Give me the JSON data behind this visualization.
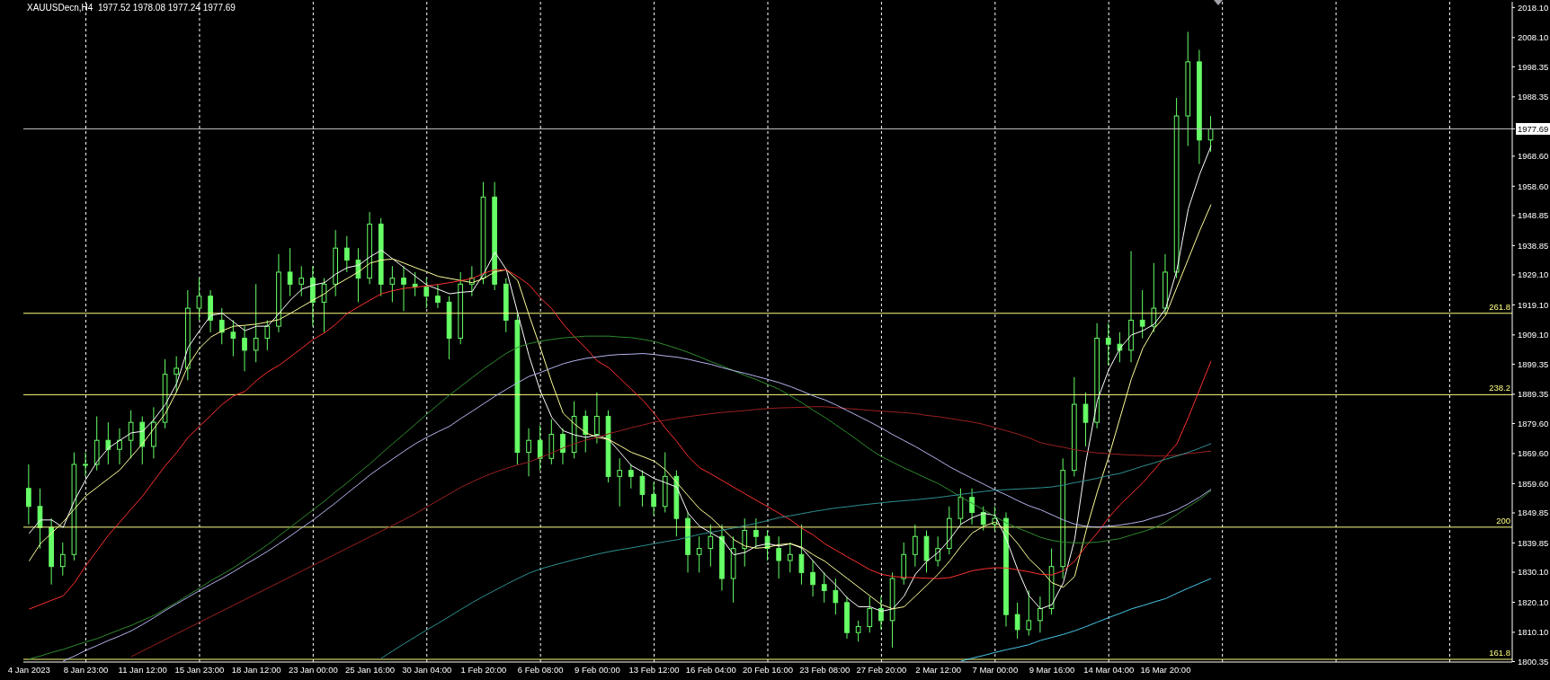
{
  "chart_data": {
    "type": "candlestick",
    "title": "XAUUSDecn,H4  1977.52 1978.08 1977.24 1977.69",
    "color": "#66ff66",
    "categories": [
      "4 Jan 2023",
      null,
      null,
      null,
      null,
      "8 Jan 23:00",
      null,
      null,
      null,
      null,
      "11 Jan 12:00",
      null,
      null,
      null,
      null,
      "15 Jan 23:00",
      null,
      null,
      null,
      null,
      "18 Jan 12:00",
      null,
      null,
      null,
      null,
      "23 Jan 00:00",
      null,
      null,
      null,
      null,
      "25 Jan 16:00",
      null,
      null,
      null,
      null,
      "30 Jan 04:00",
      null,
      null,
      null,
      null,
      "1 Feb 20:00",
      null,
      null,
      null,
      null,
      "6 Feb 08:00",
      null,
      null,
      null,
      null,
      "9 Feb 00:00",
      null,
      null,
      null,
      null,
      "13 Feb 12:00",
      null,
      null,
      null,
      null,
      "16 Feb 04:00",
      null,
      null,
      null,
      null,
      "20 Feb 16:00",
      null,
      null,
      null,
      null,
      "23 Feb 08:00",
      null,
      null,
      null,
      null,
      "27 Feb 20:00",
      null,
      null,
      null,
      null,
      "2 Mar 12:00",
      null,
      null,
      null,
      null,
      "7 Mar 00:00",
      null,
      null,
      null,
      null,
      "9 Mar 16:00",
      null,
      null,
      null,
      null,
      "14 Mar 04:00",
      null,
      null,
      null,
      null,
      "16 Mar 20:00",
      null,
      null,
      null,
      null,
      null,
      null,
      null,
      null,
      null,
      null,
      null,
      null,
      null,
      null,
      null,
      null,
      null,
      null,
      null,
      null,
      null,
      null,
      null,
      null,
      null,
      null,
      null,
      null,
      null,
      null
    ],
    "ohlc": [
      [
        1858,
        1866,
        1846,
        1852
      ],
      [
        1852,
        1858,
        1838,
        1845
      ],
      [
        1845,
        1848,
        1826,
        1832
      ],
      [
        1832,
        1840,
        1829,
        1836
      ],
      [
        1836,
        1870,
        1834,
        1866
      ],
      [
        1866,
        1870,
        1862,
        1866
      ],
      [
        1866,
        1882,
        1864,
        1874
      ],
      [
        1874,
        1880,
        1866,
        1871
      ],
      [
        1871,
        1878,
        1866,
        1874
      ],
      [
        1874,
        1884,
        1868,
        1880
      ],
      [
        1880,
        1882,
        1866,
        1872
      ],
      [
        1872,
        1885,
        1868,
        1880
      ],
      [
        1880,
        1901,
        1878,
        1896
      ],
      [
        1896,
        1902,
        1890,
        1898
      ],
      [
        1898,
        1924,
        1894,
        1918
      ],
      [
        1918,
        1928,
        1914,
        1922
      ],
      [
        1922,
        1924,
        1910,
        1914
      ],
      [
        1914,
        1918,
        1906,
        1910
      ],
      [
        1910,
        1914,
        1902,
        1908
      ],
      [
        1908,
        1912,
        1897,
        1904
      ],
      [
        1904,
        1926,
        1900,
        1908
      ],
      [
        1908,
        1914,
        1904,
        1912
      ],
      [
        1912,
        1936,
        1910,
        1930
      ],
      [
        1930,
        1938,
        1922,
        1926
      ],
      [
        1926,
        1932,
        1922,
        1928
      ],
      [
        1928,
        1932,
        1912,
        1920
      ],
      [
        1920,
        1928,
        1910,
        1926
      ],
      [
        1926,
        1944,
        1922,
        1938
      ],
      [
        1938,
        1942,
        1930,
        1934
      ],
      [
        1934,
        1938,
        1920,
        1928
      ],
      [
        1928,
        1950,
        1926,
        1946
      ],
      [
        1946,
        1948,
        1922,
        1926
      ],
      [
        1926,
        1932,
        1920,
        1928
      ],
      [
        1928,
        1932,
        1917,
        1926
      ],
      [
        1926,
        1930,
        1922,
        1925
      ],
      [
        1925,
        1928,
        1918,
        1922
      ],
      [
        1922,
        1926,
        1918,
        1920
      ],
      [
        1920,
        1922,
        1901,
        1908
      ],
      [
        1908,
        1930,
        1906,
        1926
      ],
      [
        1926,
        1932,
        1922,
        1928
      ],
      [
        1928,
        1960,
        1926,
        1955
      ],
      [
        1955,
        1960,
        1924,
        1926
      ],
      [
        1926,
        1928,
        1910,
        1914
      ],
      [
        1914,
        1916,
        1866,
        1870
      ],
      [
        1870,
        1878,
        1862,
        1874
      ],
      [
        1874,
        1879,
        1864,
        1868
      ],
      [
        1868,
        1881,
        1866,
        1876
      ],
      [
        1876,
        1878,
        1866,
        1870
      ],
      [
        1870,
        1887,
        1868,
        1882
      ],
      [
        1882,
        1884,
        1870,
        1876
      ],
      [
        1876,
        1890,
        1873,
        1882
      ],
      [
        1882,
        1884,
        1860,
        1862
      ],
      [
        1862,
        1868,
        1852,
        1864
      ],
      [
        1864,
        1866,
        1858,
        1862
      ],
      [
        1862,
        1864,
        1852,
        1856
      ],
      [
        1856,
        1860,
        1849,
        1852
      ],
      [
        1852,
        1870,
        1850,
        1862
      ],
      [
        1862,
        1864,
        1842,
        1848
      ],
      [
        1848,
        1850,
        1830,
        1836
      ],
      [
        1836,
        1842,
        1830,
        1838
      ],
      [
        1838,
        1846,
        1832,
        1842
      ],
      [
        1842,
        1846,
        1824,
        1828
      ],
      [
        1828,
        1842,
        1820,
        1838
      ],
      [
        1838,
        1848,
        1832,
        1844
      ],
      [
        1844,
        1848,
        1838,
        1842
      ],
      [
        1842,
        1844,
        1834,
        1838
      ],
      [
        1838,
        1842,
        1828,
        1834
      ],
      [
        1834,
        1840,
        1830,
        1836
      ],
      [
        1836,
        1846,
        1826,
        1830
      ],
      [
        1830,
        1834,
        1822,
        1826
      ],
      [
        1826,
        1830,
        1820,
        1824
      ],
      [
        1824,
        1828,
        1816,
        1820
      ],
      [
        1820,
        1822,
        1808,
        1810
      ],
      [
        1810,
        1814,
        1807,
        1812
      ],
      [
        1812,
        1822,
        1810,
        1818
      ],
      [
        1818,
        1822,
        1811,
        1814
      ],
      [
        1814,
        1830,
        1805,
        1828
      ],
      [
        1828,
        1840,
        1826,
        1836
      ],
      [
        1836,
        1846,
        1832,
        1842
      ],
      [
        1842,
        1844,
        1830,
        1834
      ],
      [
        1834,
        1842,
        1832,
        1838
      ],
      [
        1838,
        1852,
        1836,
        1848
      ],
      [
        1848,
        1858,
        1846,
        1855
      ],
      [
        1855,
        1858,
        1846,
        1850
      ],
      [
        1850,
        1852,
        1844,
        1846
      ],
      [
        1846,
        1852,
        1844,
        1848
      ],
      [
        1848,
        1850,
        1812,
        1816
      ],
      [
        1816,
        1820,
        1808,
        1811
      ],
      [
        1811,
        1824,
        1809,
        1814
      ],
      [
        1814,
        1822,
        1810,
        1818
      ],
      [
        1818,
        1838,
        1816,
        1832
      ],
      [
        1832,
        1868,
        1828,
        1864
      ],
      [
        1864,
        1895,
        1862,
        1886
      ],
      [
        1886,
        1890,
        1872,
        1880
      ],
      [
        1880,
        1913,
        1878,
        1908
      ],
      [
        1908,
        1913,
        1899,
        1906
      ],
      [
        1906,
        1910,
        1900,
        1904
      ],
      [
        1904,
        1937,
        1900,
        1914
      ],
      [
        1914,
        1924,
        1908,
        1912
      ],
      [
        1912,
        1933,
        1910,
        1918
      ],
      [
        1918,
        1936,
        1916,
        1930
      ],
      [
        1930,
        1988,
        1928,
        1982
      ],
      [
        1982,
        2010,
        1972,
        2000
      ],
      [
        2000,
        2004,
        1966,
        1974
      ],
      [
        1974,
        1982,
        1970,
        1977.69
      ],
      null,
      null,
      null,
      null,
      null,
      null,
      null,
      null,
      null,
      null,
      null,
      null,
      null,
      null,
      null,
      null,
      null,
      null,
      null,
      null,
      null,
      null,
      null,
      null,
      null,
      null
    ],
    "series": [
      {
        "type": "line",
        "color": "#ffffff",
        "values": [
          1843,
          1847.5,
          1847.5,
          1845,
          1854,
          1861,
          1867,
          1871.5,
          1874,
          1876.5,
          1877,
          1881,
          1886,
          1893,
          1905,
          1910.5,
          1915.6,
          1916.3,
          1913.4,
          1910.5,
          1912,
          1912,
          1916.3,
          1920.7,
          1924.3,
          1925.7,
          1926.5,
          1929.4,
          1931.5,
          1932.3,
          1935.1,
          1937.3,
          1934.4,
          1931.5,
          1928.6,
          1925.7,
          1924.3,
          1922.8,
          1923.3,
          1923.6,
          1929.4,
          1936.6,
          1930.8,
          1916.3,
          1902,
          1890.3,
          1881.6,
          1877.2,
          1875.8,
          1875,
          1875.8,
          1874.3,
          1870,
          1865.6,
          1863.5,
          1861.3,
          1859.9,
          1858.4,
          1849.7,
          1845.4,
          1843.2,
          1841,
          1835.9,
          1836.7,
          1838.8,
          1839.6,
          1838.8,
          1839.6,
          1838.1,
          1833.8,
          1829.5,
          1825.8,
          1821.5,
          1818.6,
          1818.6,
          1817.1,
          1817.9,
          1822.2,
          1829.5,
          1833.8,
          1836.7,
          1841,
          1846.1,
          1848.3,
          1849.7,
          1849,
          1841,
          1830.9,
          1822.2,
          1817.9,
          1819.3,
          1826.6,
          1841,
          1867.1,
          1887.4,
          1897.5,
          1904.7,
          1909.1,
          1910.5,
          1912.7,
          1917.8,
          1930.8,
          1951.1,
          1962.6,
          1972,
          null,
          null,
          null,
          null,
          null,
          null,
          null,
          null,
          null,
          null,
          null,
          null,
          null,
          null,
          null,
          null,
          null,
          null,
          null,
          null,
          null,
          null,
          null,
          null,
          null,
          null
        ]
      },
      {
        "type": "line",
        "color": "#ffff99",
        "values": [
          1833.8,
          1839.6,
          1843.2,
          1846.8,
          1851.2,
          1855.5,
          1858.4,
          1861.3,
          1864.2,
          1868.6,
          1872.9,
          1878,
          1883,
          1890.3,
          1898.9,
          1904.7,
          1908.4,
          1910.5,
          1912,
          1912.3,
          1912.7,
          1913.4,
          1914.2,
          1916.3,
          1918.5,
          1920.7,
          1922.8,
          1925.7,
          1927.9,
          1930.1,
          1933,
          1934,
          1934.4,
          1933,
          1931.5,
          1930.1,
          1928.6,
          1927.9,
          1927.2,
          1926.5,
          1927.9,
          1930.1,
          1930.8,
          1927.2,
          1915.6,
          1904.7,
          1893.2,
          1883,
          1879.4,
          1876.5,
          1875,
          1874.3,
          1872.2,
          1870,
          1868.6,
          1867.1,
          1864.2,
          1859.9,
          1855.5,
          1851.2,
          1848.3,
          1844.7,
          1841,
          1838.8,
          1838.1,
          1838.4,
          1839.3,
          1839.6,
          1838.4,
          1835.9,
          1833.8,
          1830.9,
          1828,
          1825.1,
          1822.2,
          1819.3,
          1817.9,
          1818.6,
          1822.2,
          1825.8,
          1829.5,
          1833.8,
          1838.8,
          1843.2,
          1845.4,
          1846.8,
          1843.9,
          1839.6,
          1834.5,
          1830.9,
          1826.6,
          1825.1,
          1828.7,
          1843.9,
          1857,
          1868.6,
          1881.6,
          1894.6,
          1904.7,
          1911.2,
          1915.6,
          1925,
          1934.4,
          1943.8,
          1952.5,
          null,
          null,
          null,
          null,
          null,
          null,
          null,
          null,
          null,
          null,
          null,
          null,
          null,
          null,
          null,
          null,
          null,
          null,
          null,
          null,
          null,
          null,
          null,
          null,
          null,
          null
        ]
      },
      {
        "type": "line",
        "color": "#ff3030",
        "values": [
          1817.8,
          1819.3,
          1820.8,
          1822.2,
          1826.6,
          1832.3,
          1837.4,
          1842.5,
          1846.8,
          1851.2,
          1855.5,
          1860.6,
          1865.6,
          1870,
          1875,
          1878.7,
          1882.3,
          1886,
          1888.8,
          1890.3,
          1893.9,
          1896.8,
          1899,
          1901.8,
          1904.7,
          1907.6,
          1909.8,
          1912.7,
          1916.3,
          1918.5,
          1920.7,
          1922.8,
          1923.8,
          1924.6,
          1925,
          1925.4,
          1925.9,
          1926.5,
          1927.2,
          1927.9,
          1929.6,
          1930.8,
          1930.8,
          1928.5,
          1925.8,
          1921.4,
          1917.8,
          1912.7,
          1908.4,
          1904.7,
          1900.4,
          1898.2,
          1894.6,
          1891,
          1887.4,
          1883,
          1878,
          1873.6,
          1868.6,
          1864.9,
          1862.8,
          1860.6,
          1858.4,
          1856.2,
          1854,
          1851.9,
          1849.7,
          1847.5,
          1844.7,
          1842.5,
          1839.6,
          1837.4,
          1835.2,
          1833.1,
          1830.9,
          1829.4,
          1828.7,
          1828.4,
          1828.3,
          1828.1,
          1828,
          1828.3,
          1829.4,
          1830.6,
          1831.2,
          1831.6,
          1831.5,
          1830.9,
          1830.2,
          1829.4,
          1829.2,
          1830.6,
          1833.8,
          1838.8,
          1843.2,
          1848.3,
          1852.6,
          1856.2,
          1859.9,
          1864.2,
          1868.6,
          1872.9,
          1881.6,
          1891,
          1900.4,
          null,
          null,
          null,
          null,
          null,
          null,
          null,
          null,
          null,
          null,
          null,
          null,
          null,
          null,
          null,
          null,
          null,
          null,
          null,
          null,
          null,
          null,
          null,
          null,
          null,
          null
        ]
      },
      {
        "type": "line",
        "color": "#9c2020",
        "values": [
          null,
          null,
          null,
          null,
          null,
          null,
          null,
          null,
          null,
          1802,
          1803.9,
          1805.8,
          1807.7,
          1809.6,
          1811.5,
          1813.4,
          1815.3,
          1817.2,
          1819.1,
          1821,
          1822.9,
          1824.8,
          1826.7,
          1828.6,
          1830.5,
          1832.4,
          1834.3,
          1836.2,
          1838.1,
          1840,
          1841.9,
          1843.8,
          1845.7,
          1847.6,
          1849.6,
          1851.8,
          1854,
          1856.2,
          1858.4,
          1860.2,
          1861.9,
          1863.4,
          1864.7,
          1865.8,
          1866.8,
          1868.3,
          1869.8,
          1871.5,
          1872.9,
          1874.1,
          1875,
          1876.2,
          1877.2,
          1878.2,
          1879.1,
          1880.1,
          1880.7,
          1881.3,
          1881.9,
          1882.4,
          1882.9,
          1883.3,
          1883.6,
          1883.9,
          1884.3,
          1884.6,
          1884.8,
          1884.9,
          1885,
          1885.2,
          1885.2,
          1884.9,
          1884.6,
          1884.3,
          1884,
          1883.7,
          1883.5,
          1883.2,
          1882.9,
          1882.3,
          1881.9,
          1881.3,
          1880.7,
          1880.1,
          1879.3,
          1878.2,
          1877.2,
          1876.1,
          1874.8,
          1873.2,
          1872.4,
          1871.7,
          1870.9,
          1870.3,
          1869.8,
          1869.6,
          1869.3,
          1869.1,
          1869,
          1868.8,
          1868.8,
          1869.1,
          1869.6,
          1870,
          1870.4,
          null,
          null,
          null,
          null,
          null,
          null,
          null,
          null,
          null,
          null,
          null,
          null,
          null,
          null,
          null,
          null,
          null,
          null,
          null,
          null,
          null,
          null,
          null,
          null,
          null,
          null
        ]
      },
      {
        "type": "line",
        "color": "#2e8b2e",
        "values": [
          1801.2,
          1802.2,
          1803.4,
          1804.4,
          1805.7,
          1806.9,
          1808,
          1809.5,
          1811,
          1812.4,
          1814.1,
          1815.7,
          1817.9,
          1820.1,
          1822.5,
          1824.8,
          1827.3,
          1829.4,
          1831.6,
          1834.1,
          1836.7,
          1839.3,
          1842.2,
          1845.1,
          1848,
          1850.9,
          1853.8,
          1857,
          1859.9,
          1863.1,
          1866.2,
          1869.6,
          1872.9,
          1876.1,
          1879.4,
          1882.7,
          1885.9,
          1889.1,
          1892,
          1894.9,
          1897.8,
          1900.4,
          1903,
          1905,
          1906.2,
          1907,
          1907.6,
          1908.1,
          1908.4,
          1908.7,
          1908.7,
          1908.7,
          1908.4,
          1908.2,
          1907.6,
          1906.9,
          1905.8,
          1904.6,
          1903.3,
          1901.8,
          1900.2,
          1898.8,
          1897.2,
          1895.6,
          1894.2,
          1892.6,
          1891,
          1888.8,
          1886.5,
          1884,
          1881.7,
          1879.1,
          1876.5,
          1873.8,
          1871,
          1868.6,
          1866.7,
          1864.8,
          1863.1,
          1861.3,
          1859.6,
          1857.4,
          1855.1,
          1853,
          1850.9,
          1848.6,
          1846.5,
          1844.8,
          1843.3,
          1841.7,
          1840.7,
          1840.1,
          1839.9,
          1839.9,
          1840.1,
          1840.7,
          1841.3,
          1842.5,
          1843.6,
          1844.9,
          1846.8,
          1849.3,
          1851.9,
          1854.3,
          1857.3,
          null,
          null,
          null,
          null,
          null,
          null,
          null,
          null,
          null,
          null,
          null,
          null,
          null,
          null,
          null,
          null,
          null,
          null,
          null,
          null,
          null,
          null,
          null,
          null,
          null,
          null
        ]
      },
      {
        "type": "line",
        "color": "#b4b4ee",
        "values": [
          null,
          null,
          null,
          1800.5,
          1802.2,
          1804.1,
          1805.7,
          1807.4,
          1808.9,
          1810.6,
          1812.7,
          1815,
          1817.4,
          1819.6,
          1821.8,
          1824,
          1826.1,
          1828.1,
          1830.3,
          1832.6,
          1834.8,
          1837.1,
          1839.6,
          1842.2,
          1844.9,
          1847.5,
          1850.4,
          1853.3,
          1856.4,
          1859.4,
          1862.5,
          1865.2,
          1867.8,
          1870.4,
          1872.9,
          1875,
          1876.9,
          1878.7,
          1881.3,
          1883.7,
          1886.2,
          1888.7,
          1891,
          1893.2,
          1895.3,
          1896.6,
          1898.1,
          1899.5,
          1900.5,
          1901.3,
          1901.8,
          1902.3,
          1902.6,
          1902.7,
          1902.9,
          1902.6,
          1902.1,
          1901.7,
          1901,
          1900.1,
          1899.3,
          1898.2,
          1897.2,
          1896.3,
          1895.3,
          1894.3,
          1893.2,
          1891.9,
          1890.4,
          1888.8,
          1887.5,
          1885.8,
          1883.9,
          1882,
          1880.1,
          1878.1,
          1875.9,
          1873.9,
          1871.9,
          1869.7,
          1867.5,
          1865.2,
          1863.2,
          1861.3,
          1859.4,
          1857.5,
          1855.8,
          1853.9,
          1852.2,
          1850.9,
          1849.2,
          1847.5,
          1846.1,
          1845.4,
          1845.1,
          1845.4,
          1845.8,
          1846.4,
          1847.1,
          1848.3,
          1849.4,
          1850.9,
          1852.9,
          1855.1,
          1857.7,
          null,
          null,
          null,
          null,
          null,
          null,
          null,
          null,
          null,
          null,
          null,
          null,
          null,
          null,
          null,
          null,
          null,
          null,
          null,
          null,
          null,
          null,
          null,
          null,
          null,
          null
        ]
      },
      {
        "type": "line",
        "color": "#2f9090",
        "values": [
          null,
          null,
          null,
          null,
          null,
          null,
          null,
          null,
          null,
          null,
          null,
          null,
          null,
          null,
          null,
          null,
          null,
          null,
          null,
          null,
          null,
          null,
          null,
          null,
          null,
          null,
          null,
          null,
          null,
          null,
          null,
          1801.5,
          1803.9,
          1806.3,
          1808.6,
          1810.9,
          1813.1,
          1815.4,
          1817.7,
          1820,
          1822.1,
          1824.1,
          1826.1,
          1828,
          1829.8,
          1831.2,
          1832.3,
          1833.3,
          1834.3,
          1835.2,
          1836.1,
          1836.9,
          1837.6,
          1838.2,
          1838.9,
          1839.6,
          1840.3,
          1840.9,
          1841.8,
          1842.7,
          1843.4,
          1844.1,
          1844.8,
          1845.6,
          1846.4,
          1847.3,
          1848.3,
          1848.9,
          1849.6,
          1850.3,
          1850.9,
          1851.5,
          1851.9,
          1852.4,
          1852.8,
          1853.2,
          1853.6,
          1853.9,
          1854.2,
          1854.6,
          1855,
          1855.5,
          1856,
          1856.5,
          1857,
          1857.4,
          1857.6,
          1857.8,
          1858,
          1858.2,
          1858.5,
          1859.1,
          1859.9,
          1860.6,
          1861.4,
          1862.3,
          1863,
          1864.2,
          1865.4,
          1866.5,
          1867.7,
          1868.8,
          1870,
          1871.4,
          1872.9,
          null,
          null,
          null,
          null,
          null,
          null,
          null,
          null,
          null,
          null,
          null,
          null,
          null,
          null,
          null,
          null,
          null,
          null,
          null,
          null,
          null,
          null,
          null,
          null,
          null,
          null
        ]
      },
      {
        "type": "line",
        "color": "#48c8e8",
        "values": [
          null,
          null,
          null,
          null,
          null,
          null,
          null,
          null,
          null,
          null,
          null,
          null,
          null,
          null,
          null,
          null,
          null,
          null,
          null,
          null,
          null,
          null,
          null,
          null,
          null,
          null,
          null,
          null,
          null,
          null,
          null,
          null,
          null,
          null,
          null,
          null,
          null,
          null,
          null,
          null,
          null,
          null,
          null,
          null,
          null,
          null,
          null,
          null,
          null,
          null,
          null,
          null,
          null,
          null,
          null,
          null,
          null,
          null,
          null,
          null,
          null,
          null,
          null,
          null,
          null,
          null,
          null,
          null,
          null,
          null,
          null,
          null,
          null,
          null,
          null,
          null,
          null,
          null,
          null,
          null,
          null,
          null,
          1800.5,
          1801.5,
          1802.4,
          1803.4,
          1804.3,
          1805.1,
          1806,
          1807.4,
          1808.4,
          1809.4,
          1810.6,
          1812,
          1813.5,
          1815,
          1816.4,
          1817.9,
          1819,
          1820.2,
          1821.3,
          1823.1,
          1824.8,
          1826.4,
          1828,
          null,
          null,
          null,
          null,
          null,
          null,
          null,
          null,
          null,
          null,
          null,
          null,
          null,
          null,
          null,
          null,
          null,
          null,
          null,
          null,
          null,
          null,
          null,
          null,
          null,
          null
        ]
      }
    ],
    "ylim": [
      1800.2,
      2020
    ],
    "yticks": [
      1800.35,
      {
        "value": 1810.1,
        "label": "1810.10"
      },
      {
        "value": 1820.1,
        "label": "1820.10"
      },
      {
        "value": 1830.1,
        "label": "1830.10"
      },
      1839.85,
      1849.85,
      {
        "value": 1859.6,
        "label": "1859.60"
      },
      {
        "value": 1869.6,
        "label": "1869.60"
      },
      {
        "value": 1879.6,
        "label": "1879.60"
      },
      1889.35,
      1899.35,
      {
        "value": 1909.1,
        "label": "1909.10"
      },
      {
        "value": 1919.1,
        "label": "1919.10"
      },
      {
        "value": 1929.1,
        "label": "1929.10"
      },
      1938.85,
      1948.85,
      {
        "value": 1958.6,
        "label": "1958.60"
      },
      {
        "value": 1968.6,
        "label": "1968.60"
      },
      1977.69,
      1988.35,
      1998.35,
      {
        "value": 2008.1,
        "label": "2008.10"
      },
      {
        "value": 2018.1,
        "label": "2018.10"
      }
    ],
    "grid": "x",
    "ref_lines": [
      {
        "axis": "y",
        "value": 1977.69,
        "color": "#c0c0c0"
      },
      {
        "axis": "y",
        "value": 1916.3,
        "color": "#ffff80"
      },
      {
        "axis": "y",
        "value": 1889.2,
        "color": "#ffff80"
      },
      {
        "axis": "y",
        "value": 1845.1,
        "color": "#ffff80"
      },
      {
        "axis": "y",
        "value": 1801.1,
        "color": "#ffff80"
      }
    ],
    "annotations": [
      {
        "text": "261.8",
        "y": 1916.3
      },
      {
        "text": "238.2",
        "y": 1889.2
      },
      {
        "text": "200",
        "y": 1845.1
      },
      {
        "text": "161.8",
        "y": 1801.1
      }
    ]
  }
}
